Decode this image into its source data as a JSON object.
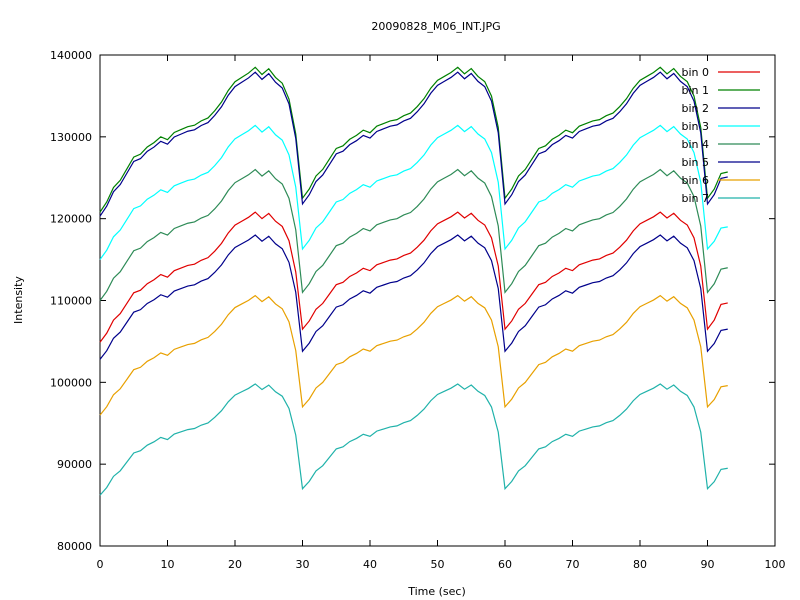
{
  "chart_data": {
    "type": "line",
    "title": "20090828_M06_INT.JPG",
    "xlabel": "Time (sec)",
    "ylabel": "Intensity",
    "xlim": [
      0,
      100
    ],
    "ylim": [
      80000,
      140000
    ],
    "x_ticks": [
      0,
      10,
      20,
      30,
      40,
      50,
      60,
      70,
      80,
      90,
      100
    ],
    "y_ticks": [
      80000,
      90000,
      100000,
      110000,
      120000,
      130000,
      140000
    ],
    "grid": false,
    "legend_position": "top-right",
    "series": [
      {
        "name": "bin 0",
        "color": "#e00000",
        "base": 104900,
        "peak": 120800,
        "trough": 106500,
        "end": 109700
      },
      {
        "name": "bin 1",
        "color": "#008000",
        "base": 120800,
        "peak": 138500,
        "trough": 122500,
        "end": 125700
      },
      {
        "name": "bin 2",
        "color": "#00008b",
        "base": 120300,
        "peak": 137900,
        "trough": 121800,
        "end": 125100
      },
      {
        "name": "bin 3",
        "color": "#00ffff",
        "base": 115000,
        "peak": 131400,
        "trough": 116300,
        "end": 119000
      },
      {
        "name": "bin 4",
        "color": "#2e8b57",
        "base": 110000,
        "peak": 126000,
        "trough": 111000,
        "end": 114000
      },
      {
        "name": "bin 5",
        "color": "#00008b",
        "base": 102800,
        "peak": 118000,
        "trough": 103800,
        "end": 106500
      },
      {
        "name": "bin 6",
        "color": "#e8a000",
        "base": 96000,
        "peak": 110600,
        "trough": 97000,
        "end": 99600
      },
      {
        "name": "bin 7",
        "color": "#20b2aa",
        "base": 86200,
        "peak": 99800,
        "trough": 87000,
        "end": 89500
      }
    ],
    "shape": {
      "x_start": 0,
      "x_end": 93,
      "points_per_cycle": 30,
      "cycles": 3,
      "profile": [
        0.0,
        0.07,
        0.17,
        0.22,
        0.3,
        0.38,
        0.4,
        0.45,
        0.48,
        0.52,
        0.5,
        0.55,
        0.57,
        0.59,
        0.6,
        0.63,
        0.65,
        0.7,
        0.76,
        0.84,
        0.9,
        0.93,
        0.96,
        1.0,
        0.95,
        0.99,
        0.93,
        0.89,
        0.78,
        0.54
      ],
      "tail": [
        0.0,
        0.25,
        0.68,
        0.72
      ]
    }
  }
}
